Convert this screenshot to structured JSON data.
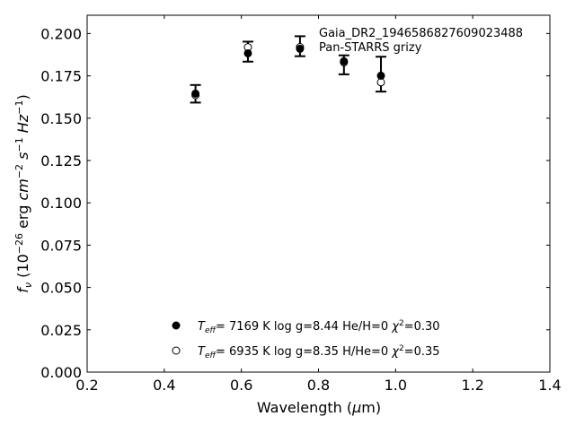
{
  "chart_data": {
    "type": "scatter",
    "xlabel": "Wavelength (μm)",
    "ylabel": "f_ν (10^-26 erg cm^-2 s^-1 Hz^-1)",
    "xlim": [
      0.2,
      1.4
    ],
    "ylim": [
      0.0,
      0.2108
    ],
    "xticks": [
      "0.2",
      "0.4",
      "0.6",
      "0.8",
      "1.0",
      "1.2",
      "1.4"
    ],
    "yticks": [
      "0.000",
      "0.025",
      "0.050",
      "0.075",
      "0.100",
      "0.125",
      "0.150",
      "0.175",
      "0.200"
    ],
    "grid": false,
    "annotation": [
      "Gaia_DR2_1946586827609023488",
      "Pan-STARRS grizy"
    ],
    "observed": {
      "x": [
        0.481,
        0.617,
        0.752,
        0.866,
        0.962
      ],
      "y": [
        0.1644,
        0.1893,
        0.1925,
        0.1815,
        0.176
      ],
      "yerr": [
        0.0052,
        0.0059,
        0.0059,
        0.0056,
        0.0103
      ]
    },
    "series": [
      {
        "name": "T_eff= 7169 K  log g=8.44  He/H=0  χ²=0.30",
        "marker": "filled",
        "x": [
          0.481,
          0.617,
          0.752,
          0.866,
          0.962
        ],
        "y": [
          0.1645,
          0.1883,
          0.191,
          0.1836,
          0.1751
        ]
      },
      {
        "name": "T_eff= 6935 K  log g=8.35  H/He=0  χ²=0.35",
        "marker": "open",
        "x": [
          0.481,
          0.617,
          0.752,
          0.866,
          0.962
        ],
        "y": [
          0.1636,
          0.1919,
          0.192,
          0.183,
          0.1712
        ]
      }
    ],
    "legend": [
      {
        "teff": "7169 K",
        "logg": "log g=8.44",
        "comp": "He/H=0",
        "chi2": "=0.30"
      },
      {
        "teff": "6935 K",
        "logg": "log g=8.35",
        "comp": "H/He=0",
        "chi2": "=0.35"
      }
    ],
    "legend_placement": "lower-center"
  }
}
